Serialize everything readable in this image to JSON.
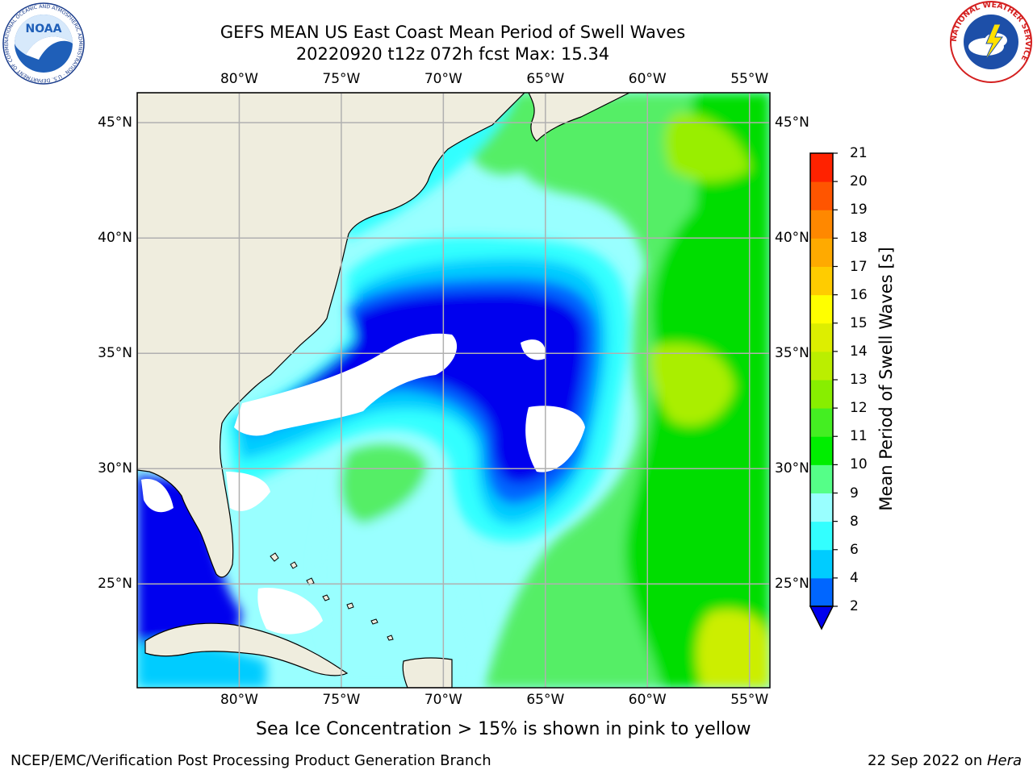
{
  "header": {
    "title_line1": "GEFS MEAN US East Coast Mean Period of Swell Waves",
    "title_line2": "20220920 t12z 072h fcst   Max: 15.34"
  },
  "logos": {
    "noaa_text": "NOAA",
    "noaa_ring_text": "NATIONAL OCEANIC AND ATMOSPHERIC ADMINISTRATION · U.S. DEPARTMENT OF COMMERCE",
    "nws_ring_text": "NATIONAL WEATHER SERVICE"
  },
  "map": {
    "lon_labels": [
      "80°W",
      "75°W",
      "70°W",
      "65°W",
      "60°W",
      "55°W"
    ],
    "lat_labels": [
      "45°N",
      "40°N",
      "35°N",
      "30°N",
      "25°N"
    ],
    "lon_range": [
      -85,
      -54
    ],
    "lat_range": [
      20.5,
      46.3
    ],
    "gridlines": true,
    "colors": {
      "land": "#efedde",
      "ice_free_missing": "#ffffff",
      "coast": "#000000",
      "grid": "#b0b0b0"
    }
  },
  "colorbar": {
    "label": "Mean Period of Swell Waves [s]",
    "ticks": [
      "2",
      "4",
      "6",
      "8",
      "9",
      "10",
      "11",
      "12",
      "13",
      "14",
      "15",
      "16",
      "17",
      "18",
      "19",
      "20",
      "21"
    ],
    "colors": [
      "#0066ff",
      "#00ccff",
      "#33ffff",
      "#99ffff",
      "#55ff88",
      "#00ee00",
      "#44ee22",
      "#88ee00",
      "#bbee00",
      "#ddee00",
      "#ffff00",
      "#ffcc00",
      "#ffaa00",
      "#ff8800",
      "#ff5500",
      "#ff2200"
    ],
    "under_color": "#0000ee"
  },
  "footer": {
    "note": "Sea Ice Concentration > 15% is shown in pink to yellow",
    "left": "NCEP/EMC/Verification Post Processing Product Generation Branch",
    "right_prefix": "22 Sep 2022 on ",
    "right_host": "Hera"
  }
}
